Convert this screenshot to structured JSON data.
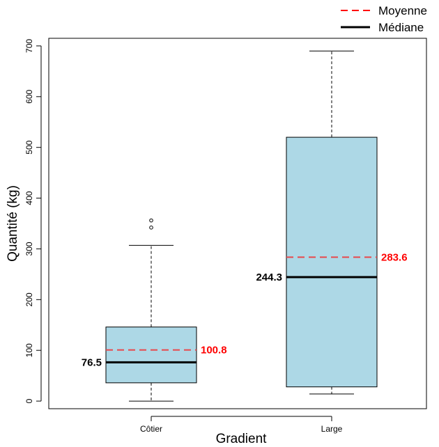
{
  "chart_data": {
    "type": "box",
    "title": "",
    "xlabel": "Gradient",
    "ylabel": "Quantité (kg)",
    "ylim": [
      -15,
      715
    ],
    "yticks": [
      0,
      100,
      200,
      300,
      400,
      500,
      600,
      700
    ],
    "grid": false,
    "legend": {
      "placement": "top-right",
      "entries": [
        {
          "label": "Moyenne",
          "style": "dashed",
          "color": "#ff0000"
        },
        {
          "label": "Médiane",
          "style": "solid",
          "color": "#000000"
        }
      ]
    },
    "box_color": "#add8e6",
    "mean_color": "#e8474b",
    "mean_label_color": "#ff0000",
    "median_color": "#000000",
    "categories": [
      "Côtier",
      "Large"
    ],
    "boxes": [
      {
        "category": "Côtier",
        "whisker_low": 0,
        "q1": 36,
        "median": 76.5,
        "q3": 146,
        "whisker_high": 307,
        "mean": 100.8,
        "outliers": [
          342,
          356
        ],
        "median_label": "76.5",
        "mean_label": "100.8"
      },
      {
        "category": "Large",
        "whisker_low": 14,
        "q1": 28,
        "median": 244.3,
        "q3": 520,
        "whisker_high": 690,
        "mean": 283.6,
        "outliers": [],
        "median_label": "244.3",
        "mean_label": "283.6"
      }
    ]
  }
}
